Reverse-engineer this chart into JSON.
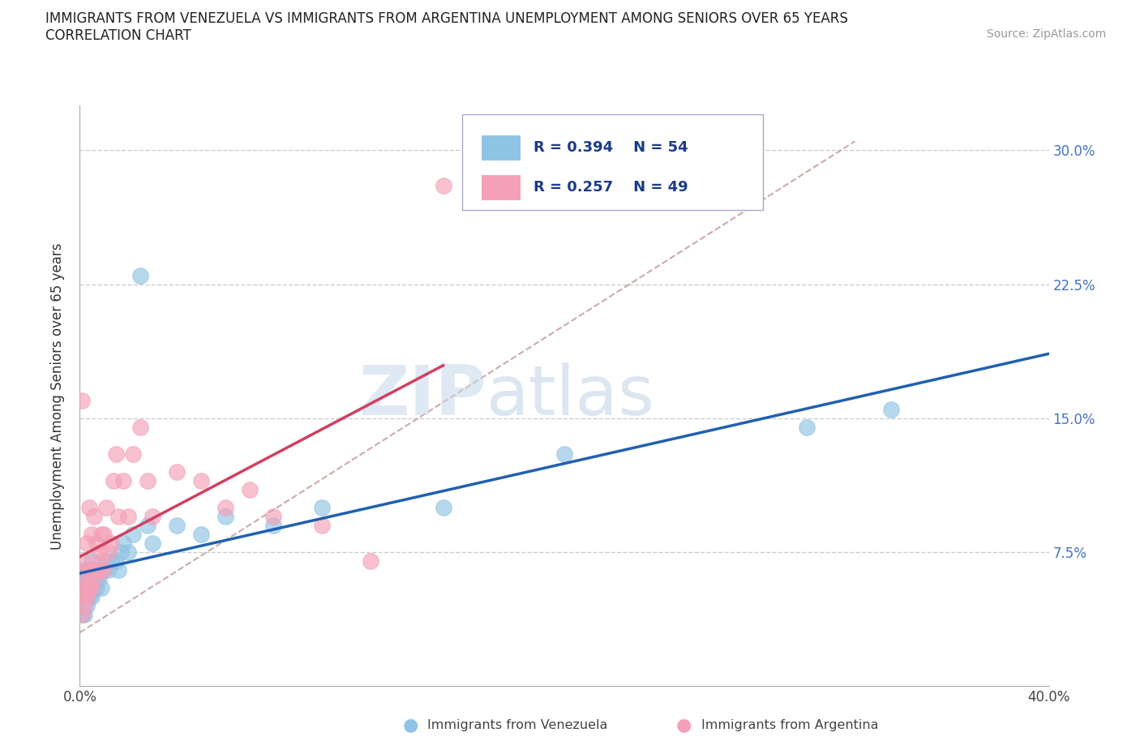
{
  "title_line1": "IMMIGRANTS FROM VENEZUELA VS IMMIGRANTS FROM ARGENTINA UNEMPLOYMENT AMONG SENIORS OVER 65 YEARS",
  "title_line2": "CORRELATION CHART",
  "source": "Source: ZipAtlas.com",
  "ylabel": "Unemployment Among Seniors over 65 years",
  "xlim": [
    0.0,
    0.4
  ],
  "ylim": [
    0.0,
    0.325
  ],
  "xtick_left": 0.0,
  "xtick_right": 0.4,
  "xtick_left_label": "0.0%",
  "xtick_right_label": "40.0%",
  "yticks": [
    0.075,
    0.15,
    0.225,
    0.3
  ],
  "ytick_labels": [
    "7.5%",
    "15.0%",
    "22.5%",
    "30.0%"
  ],
  "R_venezuela": "0.394",
  "N_venezuela": "54",
  "R_argentina": "0.257",
  "N_argentina": "49",
  "color_venezuela": "#90c4e4",
  "color_argentina": "#f4a0b8",
  "color_venezuela_line": "#2060b0",
  "color_argentina_line": "#d04060",
  "color_dashed_line": "#ccaaaa",
  "watermark_zip": "ZIP",
  "watermark_atlas": "atlas",
  "legend_label_venezuela": "Immigrants from Venezuela",
  "legend_label_argentina": "Immigrants from Argentina",
  "venezuela_x": [
    0.001,
    0.001,
    0.001,
    0.001,
    0.002,
    0.002,
    0.002,
    0.002,
    0.002,
    0.003,
    0.003,
    0.003,
    0.003,
    0.003,
    0.004,
    0.004,
    0.004,
    0.004,
    0.005,
    0.005,
    0.005,
    0.005,
    0.006,
    0.006,
    0.006,
    0.007,
    0.007,
    0.007,
    0.008,
    0.008,
    0.009,
    0.009,
    0.01,
    0.011,
    0.012,
    0.013,
    0.015,
    0.016,
    0.017,
    0.018,
    0.02,
    0.022,
    0.025,
    0.028,
    0.03,
    0.04,
    0.05,
    0.06,
    0.08,
    0.1,
    0.15,
    0.2,
    0.3,
    0.335
  ],
  "venezuela_y": [
    0.04,
    0.05,
    0.055,
    0.06,
    0.04,
    0.05,
    0.055,
    0.06,
    0.065,
    0.045,
    0.05,
    0.055,
    0.06,
    0.065,
    0.05,
    0.055,
    0.06,
    0.065,
    0.05,
    0.055,
    0.06,
    0.07,
    0.055,
    0.06,
    0.065,
    0.055,
    0.06,
    0.065,
    0.06,
    0.065,
    0.055,
    0.065,
    0.065,
    0.07,
    0.065,
    0.07,
    0.07,
    0.065,
    0.075,
    0.08,
    0.075,
    0.085,
    0.23,
    0.09,
    0.08,
    0.09,
    0.085,
    0.095,
    0.09,
    0.1,
    0.1,
    0.13,
    0.145,
    0.155
  ],
  "argentina_x": [
    0.001,
    0.001,
    0.001,
    0.001,
    0.002,
    0.002,
    0.002,
    0.002,
    0.003,
    0.003,
    0.003,
    0.003,
    0.004,
    0.004,
    0.004,
    0.005,
    0.005,
    0.005,
    0.006,
    0.006,
    0.006,
    0.007,
    0.007,
    0.008,
    0.008,
    0.009,
    0.009,
    0.01,
    0.01,
    0.011,
    0.012,
    0.013,
    0.014,
    0.015,
    0.016,
    0.018,
    0.02,
    0.022,
    0.025,
    0.028,
    0.03,
    0.04,
    0.05,
    0.06,
    0.07,
    0.08,
    0.1,
    0.12,
    0.15
  ],
  "argentina_y": [
    0.04,
    0.05,
    0.055,
    0.16,
    0.045,
    0.05,
    0.06,
    0.07,
    0.05,
    0.055,
    0.065,
    0.08,
    0.055,
    0.065,
    0.1,
    0.055,
    0.065,
    0.085,
    0.06,
    0.065,
    0.095,
    0.065,
    0.08,
    0.065,
    0.075,
    0.07,
    0.085,
    0.065,
    0.085,
    0.1,
    0.075,
    0.08,
    0.115,
    0.13,
    0.095,
    0.115,
    0.095,
    0.13,
    0.145,
    0.115,
    0.095,
    0.12,
    0.115,
    0.1,
    0.11,
    0.095,
    0.09,
    0.07,
    0.28
  ]
}
